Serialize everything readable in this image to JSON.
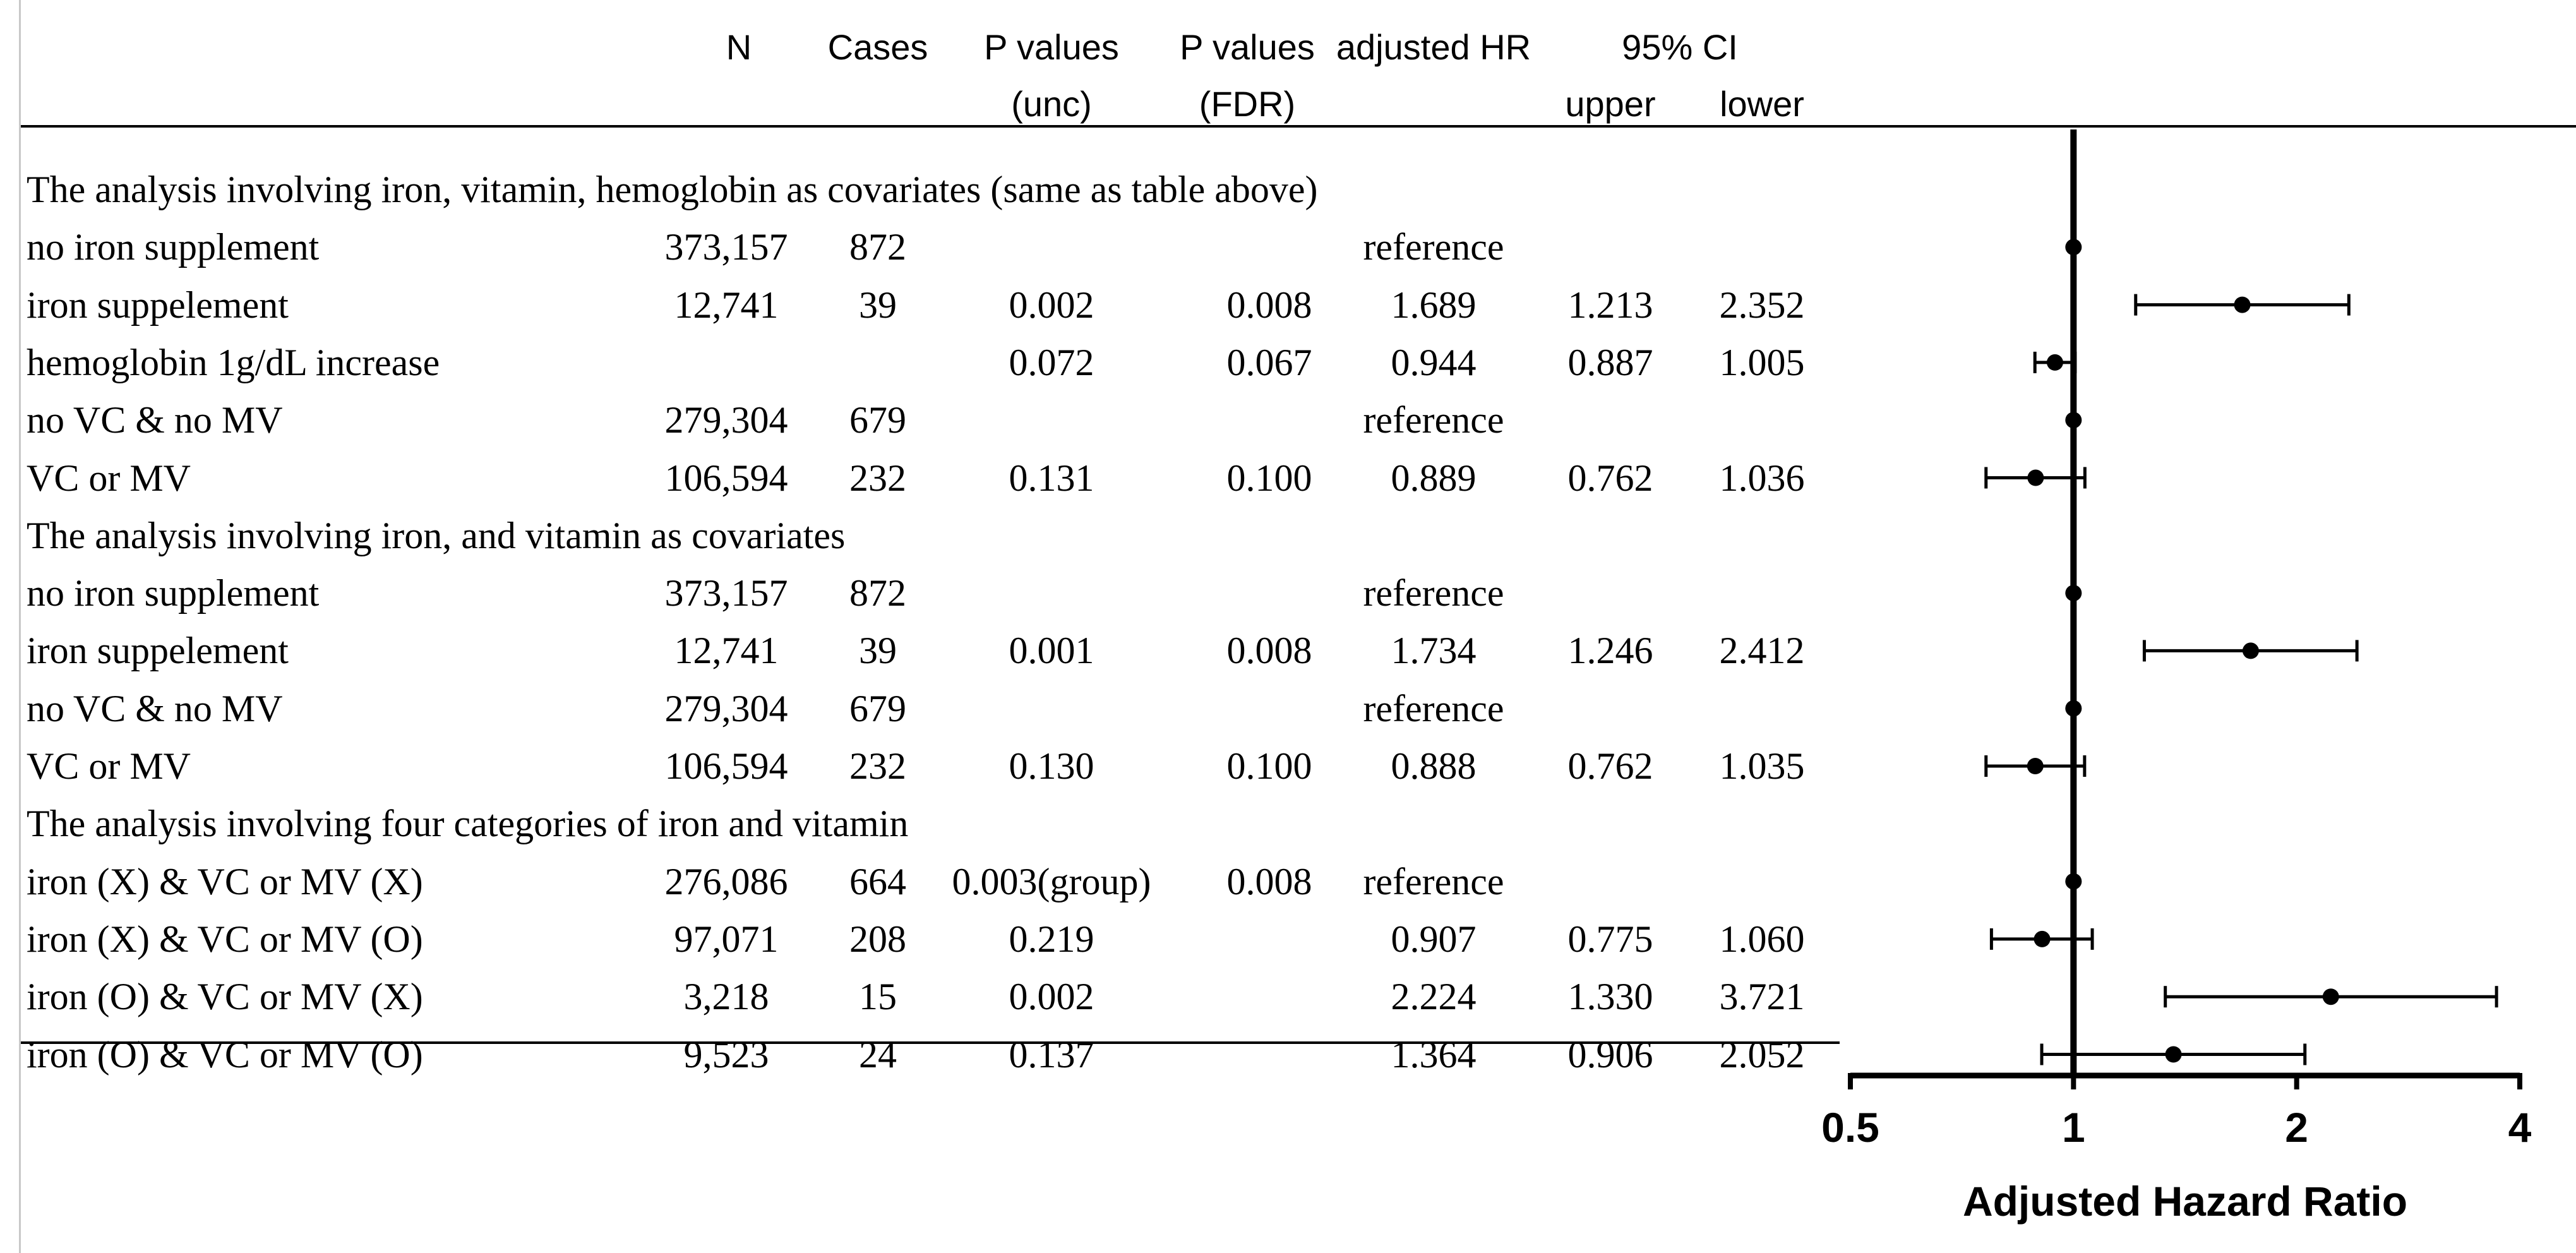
{
  "table": {
    "headers": {
      "n": "N",
      "cases": "Cases",
      "p_unc_1": "P values",
      "p_unc_2": "(unc)",
      "p_fdr_1": "P values",
      "p_fdr_2": "(FDR)",
      "hr": "adjusted HR",
      "ci": "95% CI",
      "upper": "upper",
      "lower": "lower"
    },
    "rows": [
      {
        "kind": "section",
        "label": "The analysis involving iron, vitamin, hemoglobin as covariates (same as table above)"
      },
      {
        "kind": "data",
        "label": "no iron supplement",
        "n": "373,157",
        "cases": "872",
        "p_unc": "",
        "p_fdr": "",
        "hr": "reference",
        "upper": "",
        "lower": ""
      },
      {
        "kind": "data",
        "label": "iron suppelement",
        "n": "12,741",
        "cases": "39",
        "p_unc": "0.002",
        "p_fdr": "0.008",
        "hr": "1.689",
        "upper": "1.213",
        "lower": "2.352"
      },
      {
        "kind": "data",
        "label": "hemoglobin 1g/dL increase",
        "n": "",
        "cases": "",
        "p_unc": "0.072",
        "p_fdr": "0.067",
        "hr": "0.944",
        "upper": "0.887",
        "lower": "1.005"
      },
      {
        "kind": "data",
        "label": "no VC & no MV",
        "n": "279,304",
        "cases": "679",
        "p_unc": "",
        "p_fdr": "",
        "hr": "reference",
        "upper": "",
        "lower": ""
      },
      {
        "kind": "data",
        "label": "VC or MV",
        "n": "106,594",
        "cases": "232",
        "p_unc": "0.131",
        "p_fdr": "0.100",
        "hr": "0.889",
        "upper": "0.762",
        "lower": "1.036"
      },
      {
        "kind": "section",
        "label": "The analysis involving iron, and vitamin as covariates"
      },
      {
        "kind": "data",
        "label": "no iron supplement",
        "n": "373,157",
        "cases": "872",
        "p_unc": "",
        "p_fdr": "",
        "hr": "reference",
        "upper": "",
        "lower": ""
      },
      {
        "kind": "data",
        "label": "iron suppelement",
        "n": "12,741",
        "cases": "39",
        "p_unc": "0.001",
        "p_fdr": "0.008",
        "hr": "1.734",
        "upper": "1.246",
        "lower": "2.412"
      },
      {
        "kind": "data",
        "label": "no VC & no MV",
        "n": "279,304",
        "cases": "679",
        "p_unc": "",
        "p_fdr": "",
        "hr": "reference",
        "upper": "",
        "lower": ""
      },
      {
        "kind": "data",
        "label": "VC or MV",
        "n": "106,594",
        "cases": "232",
        "p_unc": "0.130",
        "p_fdr": "0.100",
        "hr": "0.888",
        "upper": "0.762",
        "lower": "1.035"
      },
      {
        "kind": "section",
        "label": "The analysis involving four categories of iron and vitamin"
      },
      {
        "kind": "data",
        "label": "iron (X) & VC or MV (X)",
        "n": "276,086",
        "cases": "664",
        "p_unc": "0.003(group)",
        "p_fdr": "0.008",
        "hr": "reference",
        "upper": "",
        "lower": ""
      },
      {
        "kind": "data",
        "label": "iron (X) & VC or MV (O)",
        "n": "97,071",
        "cases": "208",
        "p_unc": "0.219",
        "p_fdr": "",
        "hr": "0.907",
        "upper": "0.775",
        "lower": "1.060"
      },
      {
        "kind": "data",
        "label": "iron (O) & VC or MV (X)",
        "n": "3,218",
        "cases": "15",
        "p_unc": "0.002",
        "p_fdr": "",
        "hr": "2.224",
        "upper": "1.330",
        "lower": "3.721"
      },
      {
        "kind": "data",
        "label": "iron (O) & VC or MV (O)",
        "n": "9,523",
        "cases": "24",
        "p_unc": "0.137",
        "p_fdr": "",
        "hr": "1.364",
        "upper": "0.906",
        "lower": "2.052"
      }
    ]
  },
  "chart_data": {
    "type": "forest",
    "xlabel": "Adjusted Hazard Ratio",
    "xscale": "log",
    "xlim": [
      0.5,
      4
    ],
    "xticks": [
      0.5,
      1,
      2,
      4
    ],
    "xtick_labels": [
      "0.5",
      "1",
      "2",
      "4"
    ],
    "reference_line": 1,
    "points": [
      {
        "row": 1,
        "hr": 1.0,
        "ci_low": null,
        "ci_high": null
      },
      {
        "row": 2,
        "hr": 1.689,
        "ci_low": 1.213,
        "ci_high": 2.352
      },
      {
        "row": 3,
        "hr": 0.944,
        "ci_low": 0.887,
        "ci_high": 1.005
      },
      {
        "row": 4,
        "hr": 1.0,
        "ci_low": null,
        "ci_high": null
      },
      {
        "row": 5,
        "hr": 0.889,
        "ci_low": 0.762,
        "ci_high": 1.036
      },
      {
        "row": 7,
        "hr": 1.0,
        "ci_low": null,
        "ci_high": null
      },
      {
        "row": 8,
        "hr": 1.734,
        "ci_low": 1.246,
        "ci_high": 2.412
      },
      {
        "row": 9,
        "hr": 1.0,
        "ci_low": null,
        "ci_high": null
      },
      {
        "row": 10,
        "hr": 0.888,
        "ci_low": 0.762,
        "ci_high": 1.035
      },
      {
        "row": 12,
        "hr": 1.0,
        "ci_low": null,
        "ci_high": null
      },
      {
        "row": 13,
        "hr": 0.907,
        "ci_low": 0.775,
        "ci_high": 1.06
      },
      {
        "row": 14,
        "hr": 2.224,
        "ci_low": 1.33,
        "ci_high": 3.721
      },
      {
        "row": 15,
        "hr": 1.364,
        "ci_low": 0.906,
        "ci_high": 2.052
      }
    ]
  }
}
